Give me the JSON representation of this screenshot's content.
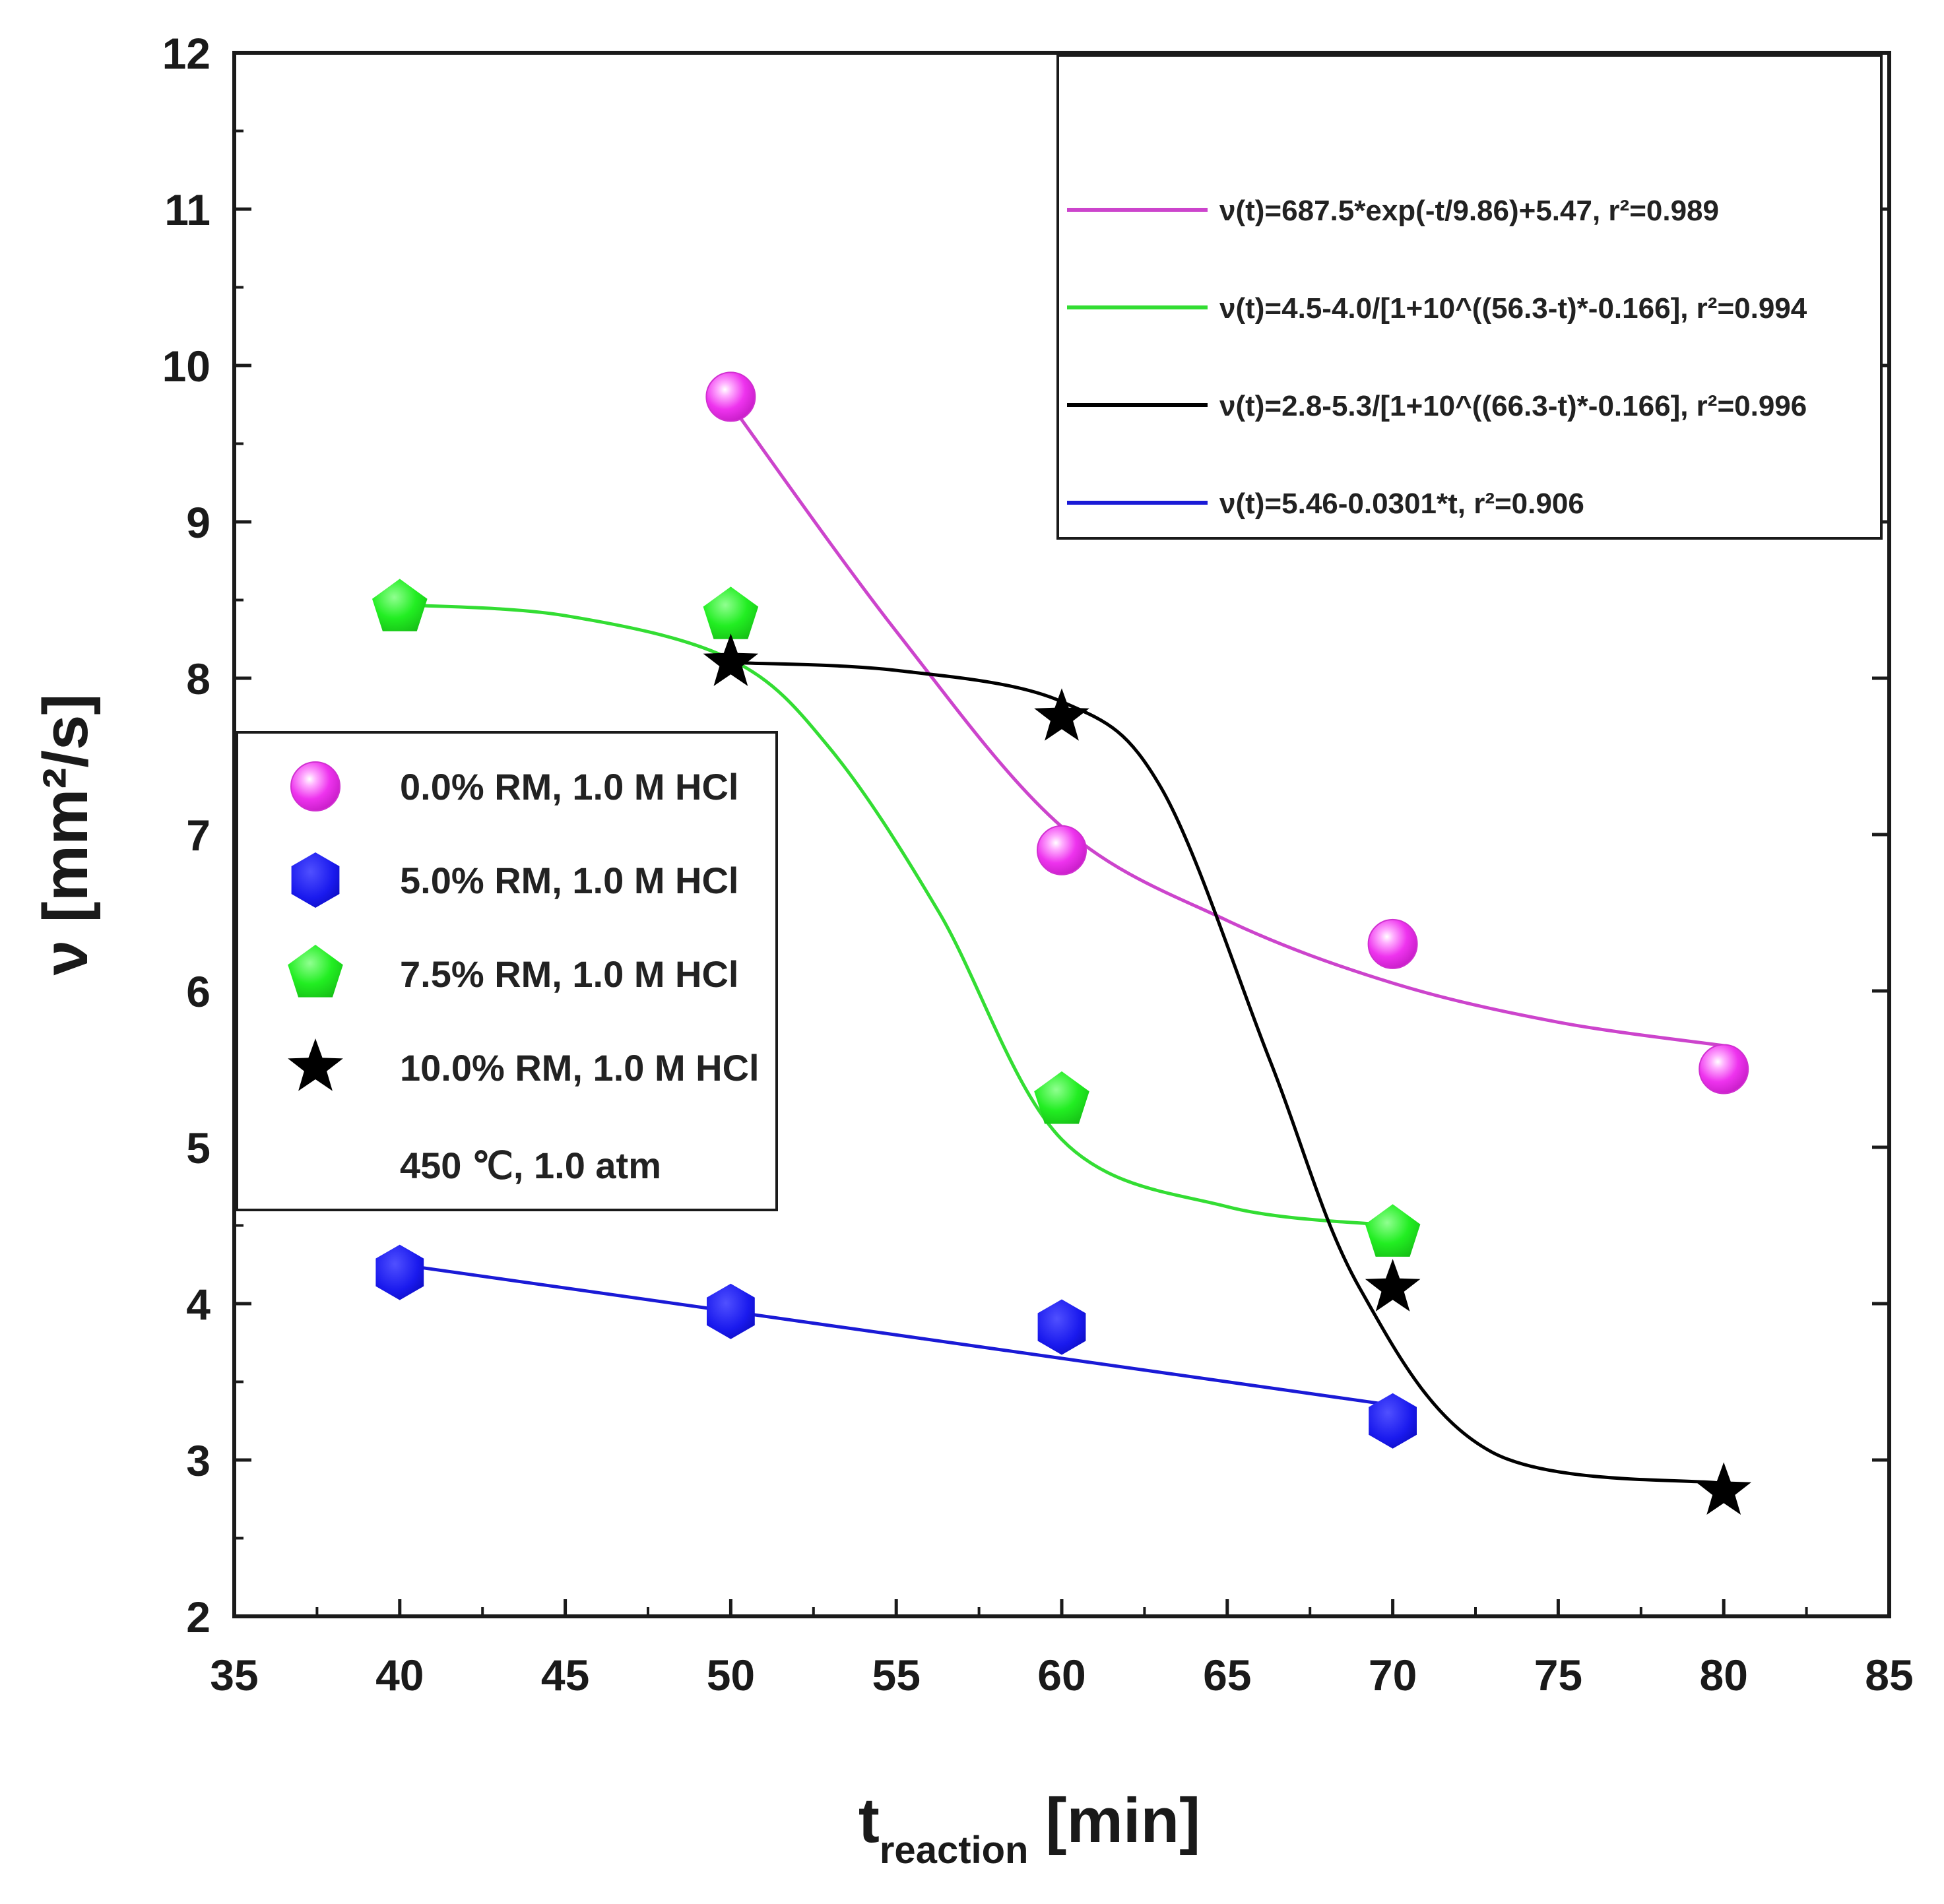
{
  "chart_data": {
    "type": "scatter",
    "xlabel": "t",
    "xlabel_sub": "reaction",
    "xlabel_unit": "[min]",
    "ylabel": "ν [mm²/s]",
    "xlim": [
      35,
      85
    ],
    "ylim": [
      2,
      12
    ],
    "xticks": [
      35,
      40,
      45,
      50,
      55,
      60,
      65,
      70,
      75,
      80,
      85
    ],
    "yticks": [
      2,
      3,
      4,
      5,
      6,
      7,
      8,
      9,
      10,
      11,
      12
    ],
    "series": [
      {
        "name": "0.0% RM, 1.0 M HCl",
        "marker": "sphere",
        "color": "#e040e0",
        "x": [
          50,
          60,
          70,
          80
        ],
        "y": [
          9.8,
          6.9,
          6.3,
          5.5
        ],
        "fit_label": "ν(t)=687.5*exp(-t/9.86)+5.47, r²=0.989",
        "fit_color": "#cc44cc"
      },
      {
        "name": "5.0% RM, 1.0 M HCl",
        "marker": "hexagon",
        "color": "#1414e6",
        "x": [
          40,
          50,
          60,
          70
        ],
        "y": [
          4.2,
          3.95,
          3.85,
          3.25
        ],
        "fit_label": "ν(t)=5.46-0.0301*t, r²=0.906",
        "fit_color": "#1a1ad6"
      },
      {
        "name": "7.5% RM, 1.0 M HCl",
        "marker": "pentagon",
        "color": "#22ee22",
        "x": [
          40,
          50,
          60,
          70
        ],
        "y": [
          8.45,
          8.4,
          5.3,
          4.45
        ],
        "fit_label": "ν(t)=4.5-4.0/[1+10^((56.3-t)*-0.166], r²=0.994",
        "fit_color": "#33dd33"
      },
      {
        "name": "10.0% RM, 1.0 M HCl",
        "marker": "star",
        "color": "#000000",
        "x": [
          50,
          60,
          70,
          80
        ],
        "y": [
          8.1,
          7.75,
          4.1,
          2.8
        ],
        "fit_label": "ν(t)=2.8-5.3/[1+10^((66.3-t)*-0.166], r²=0.996",
        "fit_color": "#000000"
      }
    ],
    "fit_legend_order": [
      0,
      2,
      3,
      1
    ],
    "condition_note": "450 ℃, 1.0 atm"
  }
}
